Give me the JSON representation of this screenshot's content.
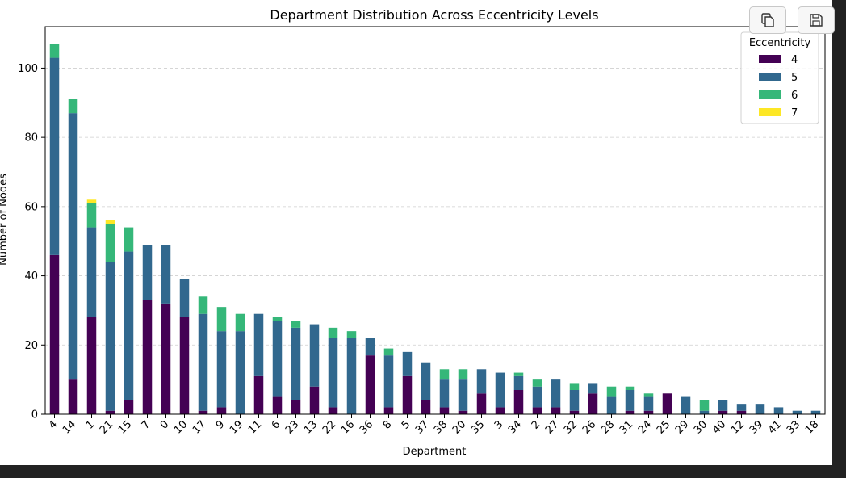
{
  "toolbar": {
    "copy_icon": "copy-icon",
    "save_icon": "floppy-disk-icon"
  },
  "chart_data": {
    "type": "bar",
    "stacked": true,
    "title": "Department Distribution Across Eccentricity Levels",
    "xlabel": "Department",
    "ylabel": "Number of Nodes",
    "ylim": [
      0,
      112
    ],
    "yticks": [
      0,
      20,
      40,
      60,
      80,
      100
    ],
    "grid": "y-dashed",
    "legend": {
      "title": "Eccentricity",
      "placement": "top-right"
    },
    "categories": [
      "4",
      "14",
      "1",
      "21",
      "15",
      "7",
      "0",
      "10",
      "17",
      "9",
      "19",
      "11",
      "6",
      "23",
      "13",
      "22",
      "16",
      "36",
      "8",
      "5",
      "37",
      "38",
      "20",
      "35",
      "3",
      "34",
      "2",
      "27",
      "32",
      "26",
      "28",
      "31",
      "24",
      "25",
      "29",
      "30",
      "40",
      "12",
      "39",
      "41",
      "33",
      "18"
    ],
    "series": [
      {
        "name": "4",
        "color": "#440154",
        "values": [
          46,
          10,
          28,
          1,
          4,
          33,
          32,
          28,
          1,
          2,
          0,
          11,
          5,
          4,
          8,
          2,
          0,
          17,
          2,
          11,
          4,
          2,
          1,
          6,
          2,
          7,
          2,
          2,
          1,
          6,
          0,
          1,
          1,
          6,
          0,
          0,
          1,
          1,
          0,
          0,
          0,
          0
        ]
      },
      {
        "name": "5",
        "color": "#31688e",
        "values": [
          57,
          77,
          26,
          43,
          43,
          16,
          17,
          11,
          28,
          22,
          24,
          18,
          22,
          21,
          18,
          20,
          22,
          5,
          15,
          7,
          11,
          8,
          9,
          7,
          10,
          4,
          6,
          8,
          6,
          3,
          5,
          6,
          4,
          0,
          5,
          1,
          3,
          2,
          3,
          2,
          1,
          1
        ]
      },
      {
        "name": "6",
        "color": "#35b779",
        "values": [
          4,
          4,
          7,
          11,
          7,
          0,
          0,
          0,
          5,
          7,
          5,
          0,
          1,
          2,
          0,
          3,
          2,
          0,
          2,
          0,
          0,
          3,
          3,
          0,
          0,
          1,
          2,
          0,
          2,
          0,
          3,
          1,
          1,
          0,
          0,
          3,
          0,
          0,
          0,
          0,
          0,
          0
        ]
      },
      {
        "name": "7",
        "color": "#fde725",
        "values": [
          0,
          0,
          1,
          1,
          0,
          0,
          0,
          0,
          0,
          0,
          0,
          0,
          0,
          0,
          0,
          0,
          0,
          0,
          0,
          0,
          0,
          0,
          0,
          0,
          0,
          0,
          0,
          0,
          0,
          0,
          0,
          0,
          0,
          0,
          0,
          0,
          0,
          0,
          0,
          0,
          0,
          0
        ]
      }
    ]
  }
}
